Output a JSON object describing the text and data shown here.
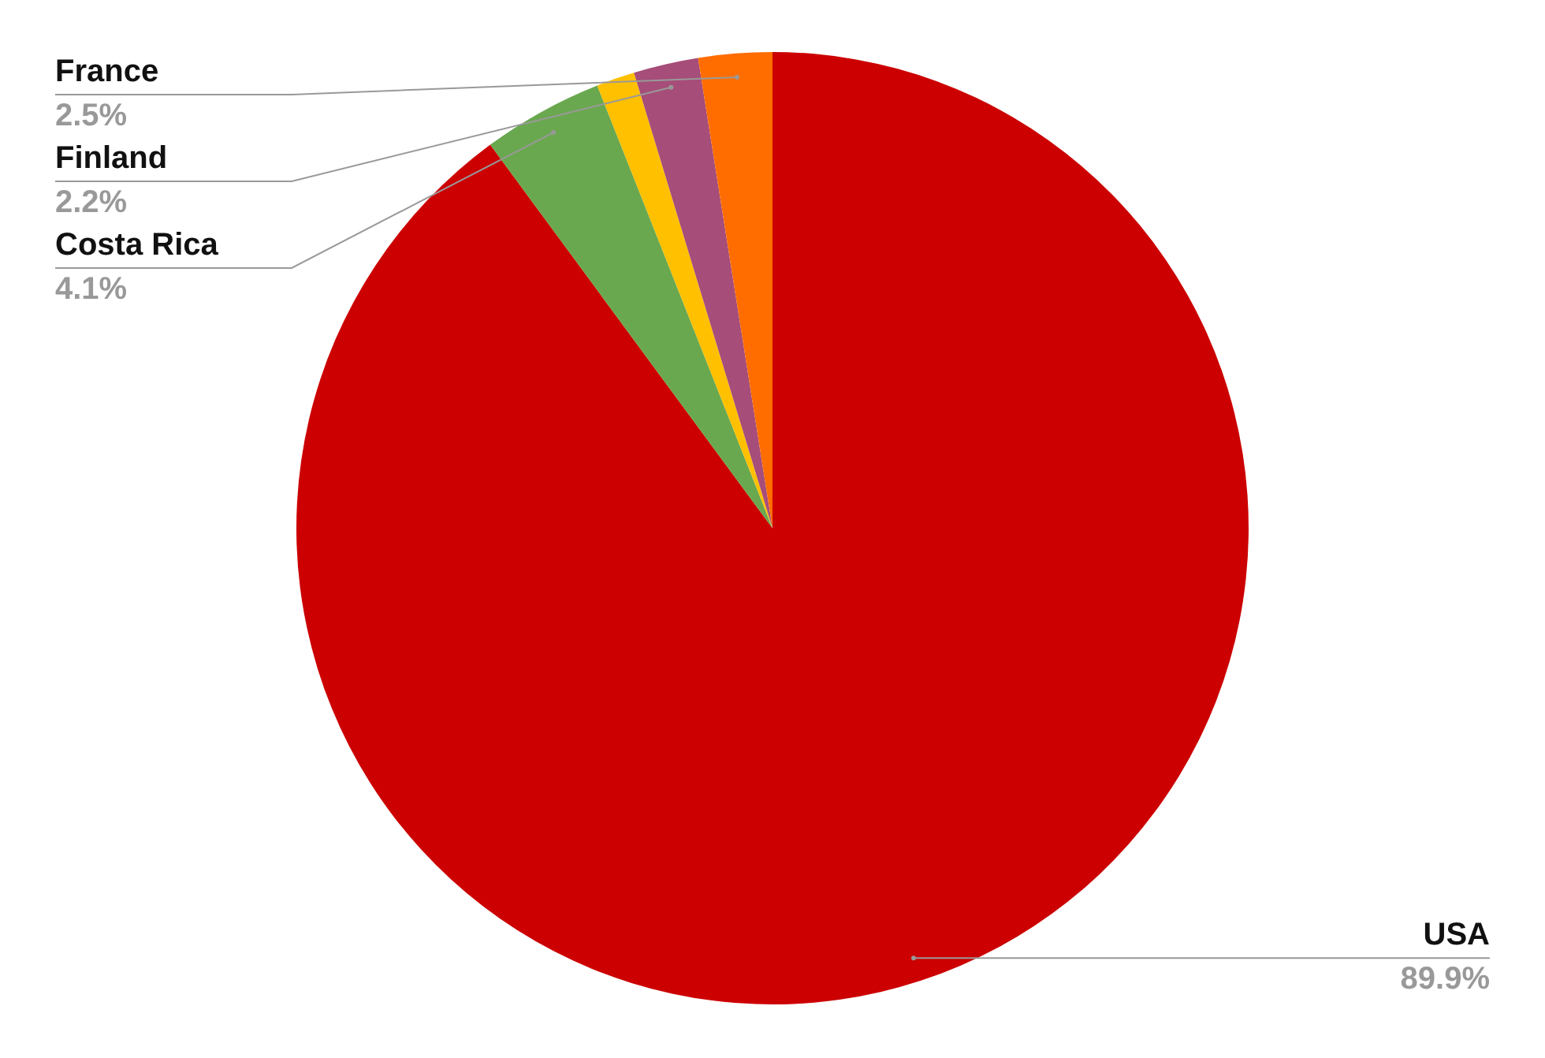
{
  "chart_data": {
    "type": "pie",
    "categories": [
      "USA",
      "Costa Rica",
      null,
      "Finland",
      "France"
    ],
    "values": [
      89.9,
      4.1,
      1.3,
      2.2,
      2.5
    ],
    "value_labels": [
      "89.9%",
      "4.1%",
      null,
      "2.2%",
      "2.5%"
    ],
    "colors": [
      "#cc0000",
      "#6aa84f",
      "#ffc000",
      "#a64d79",
      "#ff6d01"
    ],
    "legend": false
  }
}
